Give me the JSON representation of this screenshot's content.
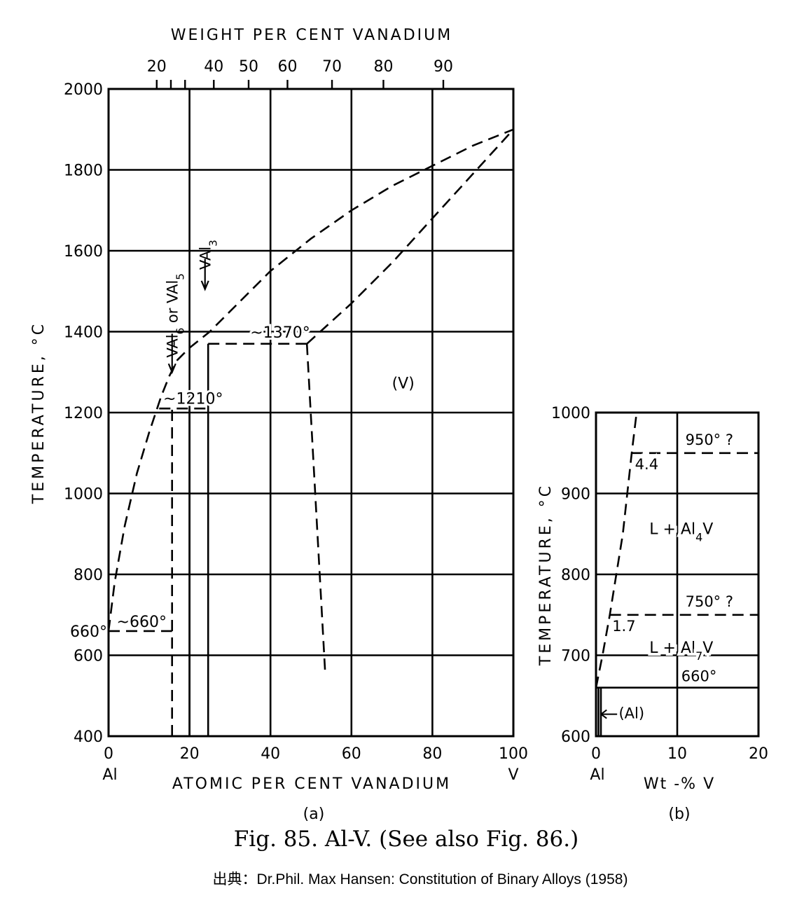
{
  "chart_data": [
    {
      "panel": "a",
      "type": "line",
      "panel_label": "(a)",
      "top_axis_title": "WEIGHT PER CENT VANADIUM",
      "top_ticks": [
        {
          "label": "20",
          "at": 11.9
        },
        {
          "label": "",
          "at": 15.4
        },
        {
          "label": "",
          "at": 18.9
        },
        {
          "label": "40",
          "at": 26.0
        },
        {
          "label": "50",
          "at": 34.6
        },
        {
          "label": "60",
          "at": 44.2
        },
        {
          "label": "70",
          "at": 55.2
        },
        {
          "label": "80",
          "at": 67.9
        },
        {
          "label": "90",
          "at": 82.7
        }
      ],
      "xlabel": "ATOMIC PER CENT VANADIUM",
      "ylabel": "TEMPERATURE, °C",
      "xlim": [
        0,
        100
      ],
      "ylim": [
        400,
        2000
      ],
      "x_ticks": [
        0,
        20,
        40,
        60,
        80,
        100
      ],
      "x_tick_labels": [
        "0",
        "20",
        "40",
        "60",
        "80",
        "100"
      ],
      "x_end_labels": {
        "left": "Al",
        "right": "V"
      },
      "y_ticks": [
        400,
        600,
        800,
        1000,
        1200,
        1400,
        1600,
        1800,
        2000
      ],
      "y_tick_labels": [
        "400",
        "600",
        "800",
        "1000",
        "1200",
        "1400",
        "1600",
        "1800",
        "2000"
      ],
      "y_extra_label": {
        "value": 660,
        "text": "660°"
      },
      "grid": true,
      "series": [
        {
          "style": "dashed",
          "points": [
            [
              0,
              660
            ],
            [
              1.5,
              780
            ],
            [
              4,
              920
            ],
            [
              7,
              1050
            ],
            [
              10,
              1150
            ],
            [
              13,
              1240
            ],
            [
              15,
              1290
            ],
            [
              17,
              1330
            ],
            [
              20,
              1360
            ],
            [
              25,
              1400
            ],
            [
              30,
              1450
            ],
            [
              40,
              1550
            ],
            [
              50,
              1630
            ],
            [
              60,
              1700
            ],
            [
              70,
              1760
            ],
            [
              80,
              1810
            ],
            [
              90,
              1860
            ],
            [
              100,
              1900
            ]
          ]
        },
        {
          "style": "dashed",
          "points": [
            [
              49,
              1370
            ],
            [
              60,
              1470
            ],
            [
              70,
              1570
            ],
            [
              80,
              1680
            ],
            [
              90,
              1790
            ],
            [
              100,
              1900
            ]
          ]
        },
        {
          "style": "dashed",
          "points": [
            [
              49,
              1370
            ],
            [
              53.5,
              560
            ]
          ]
        },
        {
          "style": "dashed",
          "points": [
            [
              24.6,
              1370
            ],
            [
              49,
              1370
            ]
          ]
        },
        {
          "style": "dashed",
          "points": [
            [
              12.5,
              1210
            ],
            [
              24.6,
              1210
            ]
          ]
        },
        {
          "style": "dashed",
          "points": [
            [
              0,
              660
            ],
            [
              15.7,
              660
            ]
          ]
        },
        {
          "style": "dashed",
          "points": [
            [
              15.7,
              400
            ],
            [
              15.7,
              1210
            ]
          ]
        },
        {
          "style": "solid",
          "points": [
            [
              20,
              400
            ],
            [
              20,
              1210
            ]
          ]
        },
        {
          "style": "solid",
          "points": [
            [
              24.6,
              400
            ],
            [
              24.6,
              1370
            ]
          ]
        }
      ],
      "annotations": [
        {
          "text": "~1370°",
          "x": 35,
          "y": 1385
        },
        {
          "text": "~1210°",
          "x": 13.5,
          "y": 1222
        },
        {
          "text": "~660°",
          "x": 2,
          "y": 670
        },
        {
          "text": "(V)",
          "x": 70,
          "y": 1260
        }
      ],
      "compound_labels": [
        {
          "formula_parts": [
            [
              "V",
              ""
            ],
            [
              "Al",
              ""
            ],
            [
              "6",
              "sub"
            ],
            [
              " or V",
              ""
            ],
            [
              "Al",
              ""
            ],
            [
              "5",
              "sub"
            ]
          ],
          "x": 15.7,
          "y_text": 1440
        },
        {
          "formula_parts": [
            [
              "V",
              ""
            ],
            [
              "Al",
              ""
            ],
            [
              "3",
              "sub"
            ]
          ],
          "x": 24.0,
          "y_text": 1590
        }
      ]
    },
    {
      "panel": "b",
      "type": "line",
      "panel_label": "(b)",
      "xlabel": "Wt -% V",
      "ylabel": "TEMPERATURE, °C",
      "xlim": [
        0,
        20
      ],
      "ylim": [
        600,
        1000
      ],
      "x_ticks": [
        0,
        10,
        20
      ],
      "x_tick_labels": [
        "0",
        "10",
        "20"
      ],
      "x_end_labels": {
        "left": "Al"
      },
      "y_ticks": [
        600,
        700,
        800,
        900,
        1000
      ],
      "y_tick_labels": [
        "600",
        "700",
        "800",
        "900",
        "1000"
      ],
      "grid": true,
      "series": [
        {
          "style": "dashed",
          "points": [
            [
              0,
              660
            ],
            [
              0.8,
              700
            ],
            [
              1.7,
              750
            ],
            [
              2.5,
              800
            ],
            [
              3.3,
              850
            ],
            [
              4.4,
              950
            ],
            [
              5.0,
              1000
            ]
          ]
        },
        {
          "style": "dashed",
          "points": [
            [
              4.4,
              950
            ],
            [
              20,
              950
            ]
          ]
        },
        {
          "style": "dashed",
          "points": [
            [
              1.7,
              750
            ],
            [
              20,
              750
            ]
          ]
        },
        {
          "style": "solid",
          "points": [
            [
              0,
              660
            ],
            [
              20,
              660
            ]
          ]
        },
        {
          "style": "solid",
          "points": [
            [
              0.3,
              600
            ],
            [
              0.3,
              660
            ]
          ]
        },
        {
          "style": "solid",
          "points": [
            [
              0.6,
              600
            ],
            [
              0.6,
              660
            ]
          ]
        }
      ],
      "annotations": [
        {
          "text": "950° ?",
          "x": 11,
          "y": 960
        },
        {
          "text": "4.4",
          "x": 4.8,
          "y": 930
        },
        {
          "text": "750° ?",
          "x": 11,
          "y": 760
        },
        {
          "text": "1.7",
          "x": 2.0,
          "y": 730
        },
        {
          "text": "660°",
          "x": 10.5,
          "y": 668
        },
        {
          "text": "(Al)",
          "x": 2.8,
          "y": 622
        }
      ],
      "phase_labels": [
        {
          "parts": [
            [
              "L + Al",
              ""
            ],
            [
              "4",
              "sub"
            ],
            [
              "V",
              ""
            ]
          ],
          "x": 10.5,
          "y": 850
        },
        {
          "parts": [
            [
              "L + Al",
              ""
            ],
            [
              "7",
              "sub"
            ],
            [
              "V",
              ""
            ]
          ],
          "x": 10.5,
          "y": 703
        }
      ]
    }
  ],
  "caption": "Fig. 85. Al-V. (See also Fig. 86.)",
  "source": "出典：Dr.Phil. Max Hansen: Constitution of Binary Alloys (1958)"
}
